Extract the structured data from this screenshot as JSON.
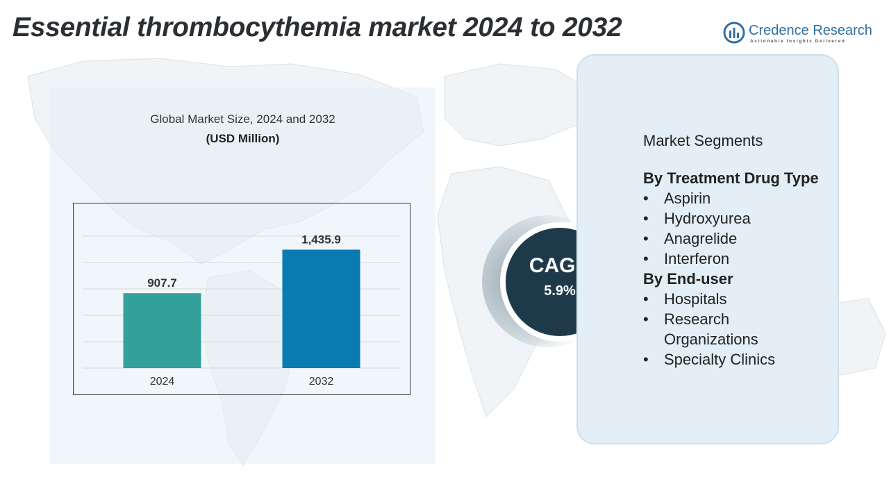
{
  "title": "Essential thrombocythemia market 2024 to 2032",
  "logo": {
    "name": "Credence Research",
    "tagline": "Actionable Insights Delivered",
    "icon": "credence-logo-icon"
  },
  "chart_heading": {
    "subtitle": "Global Market Size, 2024 and 2032",
    "unit": "(USD Million)"
  },
  "chart_data": {
    "type": "bar",
    "categories": [
      "2024",
      "2032"
    ],
    "values": [
      907.7,
      1435.9
    ],
    "value_labels": [
      "907.7",
      "1,435.9"
    ],
    "title": "Global Market Size, 2024 and 2032",
    "xlabel": "",
    "ylabel": "(USD Million)",
    "ylim": [
      0,
      1600
    ],
    "grid": true,
    "colors": [
      "#33a09a",
      "#0a7bb0"
    ]
  },
  "cagr": {
    "label": "CAGR",
    "value": "5.9%"
  },
  "segments": {
    "heading": "Market Segments",
    "groups": [
      {
        "title": "By Treatment Drug Type",
        "items": [
          "Aspirin",
          "Hydroxyurea",
          "Anagrelide",
          "Interferon"
        ]
      },
      {
        "title": "By End-user",
        "items": [
          "Hospitals",
          "Research Organizations",
          "Specialty Clinics"
        ]
      }
    ]
  },
  "colors": {
    "title": "#2b2f33",
    "brand": "#2f6ea4",
    "cagr_circle": "#1e3a4a",
    "panel": "#e3eef6"
  }
}
